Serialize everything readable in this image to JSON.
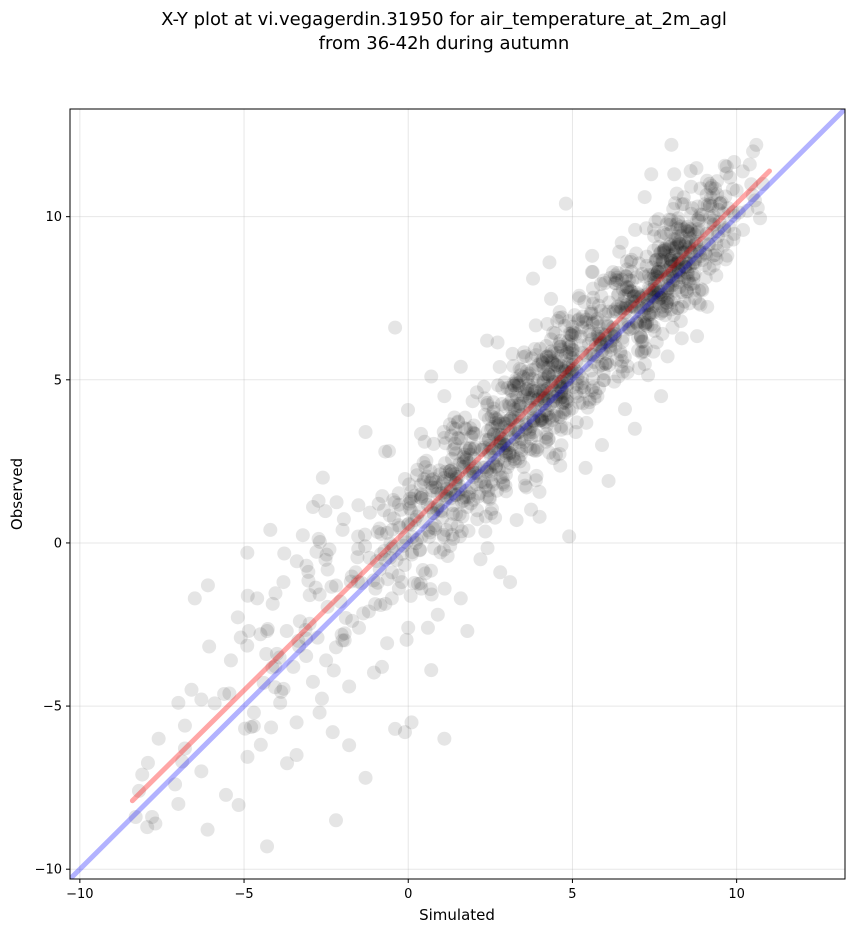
{
  "chart_data": {
    "type": "scatter",
    "title": "X-Y plot at vi.vegagerdin.31950 for air_temperature_at_2m_agl",
    "subtitle": "from 36-42h during autumn",
    "xlabel": "Simulated",
    "ylabel": "Observed",
    "xlim": [
      -10.3,
      13.3
    ],
    "ylim": [
      -10.3,
      13.3
    ],
    "x_ticks": [
      -10,
      -5,
      0,
      5,
      10
    ],
    "y_ticks": [
      -10,
      -5,
      0,
      5,
      10
    ],
    "x_tick_labels": [
      "−10",
      "−5",
      "0",
      "5",
      "10"
    ],
    "y_tick_labels": [
      "−10",
      "−5",
      "0",
      "5",
      "10"
    ],
    "grid": true,
    "point_color": "#000000",
    "point_alpha": 0.1,
    "points_approx_count": 1400,
    "points_sample": [
      [
        -8.3,
        -8.4
      ],
      [
        -8.2,
        -7.6
      ],
      [
        -8.1,
        -7.1
      ],
      [
        -7.8,
        -8.4
      ],
      [
        -7.7,
        -8.6
      ],
      [
        -7.6,
        -6.0
      ],
      [
        -7.1,
        -7.4
      ],
      [
        -7.0,
        -8.0
      ],
      [
        -7.0,
        -4.9
      ],
      [
        -6.8,
        -6.3
      ],
      [
        -6.8,
        -5.6
      ],
      [
        -6.6,
        -4.5
      ],
      [
        -6.3,
        -7.0
      ],
      [
        -6.3,
        -4.8
      ],
      [
        -6.5,
        -1.7
      ],
      [
        -6.1,
        -1.3
      ],
      [
        -5.4,
        -3.6
      ],
      [
        -5.1,
        -2.9
      ],
      [
        -4.9,
        -0.3
      ],
      [
        -4.7,
        -5.2
      ],
      [
        -4.6,
        -1.7
      ],
      [
        -4.5,
        -2.8
      ],
      [
        -4.3,
        -9.3
      ],
      [
        -4.3,
        -2.7
      ],
      [
        -4.2,
        0.4
      ],
      [
        -4.0,
        -3.4
      ],
      [
        -3.9,
        -4.9
      ],
      [
        -3.8,
        -1.2
      ],
      [
        -3.7,
        -2.7
      ],
      [
        -3.5,
        -3.8
      ],
      [
        -3.4,
        -5.5
      ],
      [
        -3.4,
        -6.5
      ],
      [
        -3.3,
        -2.4
      ],
      [
        -3.1,
        -0.7
      ],
      [
        -3.0,
        -1.6
      ],
      [
        -2.9,
        1.1
      ],
      [
        -2.7,
        -5.2
      ],
      [
        -2.6,
        2.0
      ],
      [
        -2.5,
        -3.6
      ],
      [
        -2.4,
        -0.2
      ],
      [
        -2.3,
        -5.8
      ],
      [
        -2.2,
        -8.5
      ],
      [
        -2.2,
        -3.2
      ],
      [
        -2.0,
        0.4
      ],
      [
        -1.9,
        -2.3
      ],
      [
        -1.8,
        -4.4
      ],
      [
        -1.8,
        -6.2
      ],
      [
        -1.6,
        -0.9
      ],
      [
        -1.5,
        -2.6
      ],
      [
        -1.3,
        -7.2
      ],
      [
        -1.3,
        3.4
      ],
      [
        -1.2,
        -2.1
      ],
      [
        -1.0,
        -1.4
      ],
      [
        -0.9,
        1.2
      ],
      [
        -0.8,
        -3.8
      ],
      [
        -0.7,
        2.8
      ],
      [
        -0.5,
        -1.7
      ],
      [
        -0.4,
        6.6
      ],
      [
        -0.4,
        -5.7
      ],
      [
        -0.2,
        -1.2
      ],
      [
        -0.1,
        -5.8
      ],
      [
        0.0,
        -2.6
      ],
      [
        0.1,
        -5.5
      ],
      [
        0.2,
        0.7
      ],
      [
        0.4,
        -1.4
      ],
      [
        0.5,
        3.1
      ],
      [
        0.6,
        -2.6
      ],
      [
        0.7,
        -3.9
      ],
      [
        0.7,
        5.1
      ],
      [
        0.9,
        -2.2
      ],
      [
        1.0,
        1.0
      ],
      [
        1.1,
        -6.0
      ],
      [
        1.1,
        4.5
      ],
      [
        1.2,
        -0.4
      ],
      [
        1.3,
        2.1
      ],
      [
        1.5,
        0.5
      ],
      [
        1.6,
        -1.7
      ],
      [
        1.6,
        5.4
      ],
      [
        1.8,
        -2.7
      ],
      [
        2.0,
        3.6
      ],
      [
        2.1,
        1.0
      ],
      [
        2.2,
        -0.5
      ],
      [
        2.4,
        6.2
      ],
      [
        2.5,
        2.2
      ],
      [
        2.7,
        1.6
      ],
      [
        2.8,
        -0.9
      ],
      [
        3.0,
        3.0
      ],
      [
        3.1,
        -1.2
      ],
      [
        3.2,
        4.2
      ],
      [
        3.3,
        0.7
      ],
      [
        3.4,
        2.5
      ],
      [
        3.5,
        5.7
      ],
      [
        3.6,
        1.7
      ],
      [
        3.8,
        8.1
      ],
      [
        3.9,
        3.3
      ],
      [
        4.0,
        0.8
      ],
      [
        4.1,
        4.5
      ],
      [
        4.2,
        3.1
      ],
      [
        4.3,
        8.6
      ],
      [
        4.4,
        5.1
      ],
      [
        4.5,
        2.7
      ],
      [
        4.6,
        6.9
      ],
      [
        4.7,
        4.3
      ],
      [
        4.8,
        10.4
      ],
      [
        4.9,
        0.2
      ],
      [
        5.0,
        5.8
      ],
      [
        5.1,
        3.4
      ],
      [
        5.2,
        7.5
      ],
      [
        5.3,
        4.9
      ],
      [
        5.4,
        2.3
      ],
      [
        5.5,
        6.1
      ],
      [
        5.6,
        8.8
      ],
      [
        5.7,
        4.6
      ],
      [
        5.8,
        5.4
      ],
      [
        5.9,
        3.0
      ],
      [
        6.0,
        7.0
      ],
      [
        6.1,
        1.9
      ],
      [
        6.2,
        6.2
      ],
      [
        6.3,
        8.2
      ],
      [
        6.4,
        5.1
      ],
      [
        6.5,
        9.2
      ],
      [
        6.6,
        4.1
      ],
      [
        6.7,
        6.8
      ],
      [
        6.8,
        7.7
      ],
      [
        6.9,
        3.5
      ],
      [
        7.0,
        5.9
      ],
      [
        7.2,
        10.6
      ],
      [
        7.3,
        7.2
      ],
      [
        7.4,
        11.3
      ],
      [
        7.5,
        6.5
      ],
      [
        7.6,
        8.3
      ],
      [
        7.7,
        4.5
      ],
      [
        7.8,
        9.0
      ],
      [
        7.9,
        7.5
      ],
      [
        8.0,
        8.7
      ],
      [
        8.1,
        11.3
      ],
      [
        8.2,
        9.4
      ],
      [
        8.3,
        6.8
      ],
      [
        8.4,
        8.1
      ],
      [
        8.5,
        9.7
      ],
      [
        8.6,
        11.4
      ],
      [
        8.7,
        8.6
      ],
      [
        8.8,
        9.9
      ],
      [
        8.9,
        7.3
      ],
      [
        9.0,
        9.2
      ],
      [
        9.1,
        11.1
      ],
      [
        9.2,
        9.8
      ],
      [
        9.3,
        8.5
      ],
      [
        9.5,
        10.4
      ],
      [
        9.6,
        10.1
      ],
      [
        9.8,
        11.2
      ],
      [
        9.9,
        9.3
      ],
      [
        10.0,
        10.8
      ],
      [
        10.4,
        11.6
      ],
      [
        10.5,
        12.0
      ],
      [
        10.6,
        12.2
      ],
      [
        10.8,
        11.0
      ]
    ],
    "lines": [
      {
        "color": "#0000ff",
        "alpha": 0.3,
        "x": [
          -10.3,
          13.3
        ],
        "y": [
          -10.3,
          13.3
        ]
      },
      {
        "color": "#ff0000",
        "alpha": 0.35,
        "x": [
          -8.4,
          11.0
        ],
        "y": [
          -7.9,
          11.4
        ]
      }
    ]
  }
}
